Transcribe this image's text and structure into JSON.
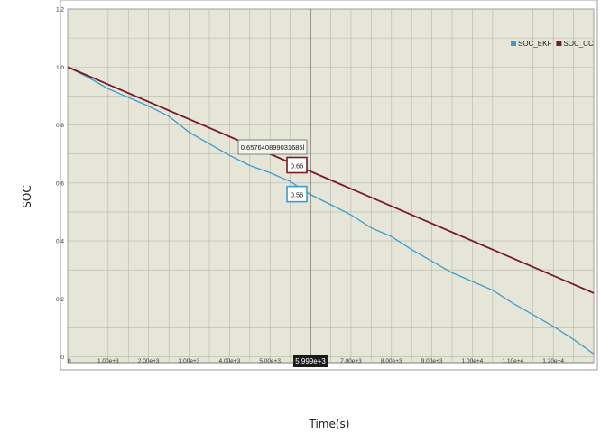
{
  "chart_data": {
    "type": "line",
    "xlabel": "Time(s)",
    "ylabel": "SOC",
    "xlim": [
      0,
      13000
    ],
    "ylim": [
      -0.02,
      1.2
    ],
    "x_ticks": [
      {
        "value": 0,
        "label": "0"
      },
      {
        "value": 1000,
        "label": "1.00e+3"
      },
      {
        "value": 2000,
        "label": "2.00e+3"
      },
      {
        "value": 3000,
        "label": "3.00e+3"
      },
      {
        "value": 4000,
        "label": "4.00e+3"
      },
      {
        "value": 5000,
        "label": "5.00e+3"
      },
      {
        "value": 7000,
        "label": "7.00e+3"
      },
      {
        "value": 8000,
        "label": "8.00e+3"
      },
      {
        "value": 9000,
        "label": "9.00e+3"
      },
      {
        "value": 10000,
        "label": "1.00e+4"
      },
      {
        "value": 11000,
        "label": "1.10e+4"
      },
      {
        "value": 12000,
        "label": "1.20e+4"
      }
    ],
    "y_ticks": [
      {
        "value": 0,
        "label": "0"
      },
      {
        "value": 0.2,
        "label": "0.2"
      },
      {
        "value": 0.4,
        "label": "0.4"
      },
      {
        "value": 0.6,
        "label": "0.6"
      },
      {
        "value": 0.8,
        "label": "0.8"
      },
      {
        "value": 1.0,
        "label": "1.0"
      },
      {
        "value": 1.2,
        "label": "1.2"
      }
    ],
    "grid": true,
    "legend_position": "top-right",
    "series": [
      {
        "name": "SOC_EKF",
        "color": "#3a9ccf",
        "x": [
          0,
          500,
          1000,
          1500,
          2000,
          2500,
          3000,
          3500,
          4000,
          4500,
          5000,
          5500,
          6000,
          6500,
          7000,
          7500,
          8000,
          8500,
          9000,
          9500,
          10000,
          10500,
          11000,
          11500,
          12000,
          12500,
          13000
        ],
        "y": [
          1.0,
          0.965,
          0.925,
          0.895,
          0.865,
          0.83,
          0.775,
          0.735,
          0.695,
          0.66,
          0.635,
          0.605,
          0.56,
          0.525,
          0.49,
          0.445,
          0.415,
          0.37,
          0.33,
          0.29,
          0.26,
          0.23,
          0.185,
          0.145,
          0.105,
          0.06,
          0.01
        ]
      },
      {
        "name": "SOC_CC",
        "color": "#7a1a28",
        "x": [
          0,
          13000
        ],
        "y": [
          1.0,
          0.22
        ]
      }
    ],
    "crosshair": {
      "x": 5999,
      "x_label": "5.999e+3",
      "header_value": "0.657640899031685l",
      "values": [
        {
          "series": "SOC_CC",
          "label": "0.66",
          "value": 0.66
        },
        {
          "series": "SOC_EKF",
          "label": "0.56",
          "value": 0.56
        }
      ]
    }
  }
}
